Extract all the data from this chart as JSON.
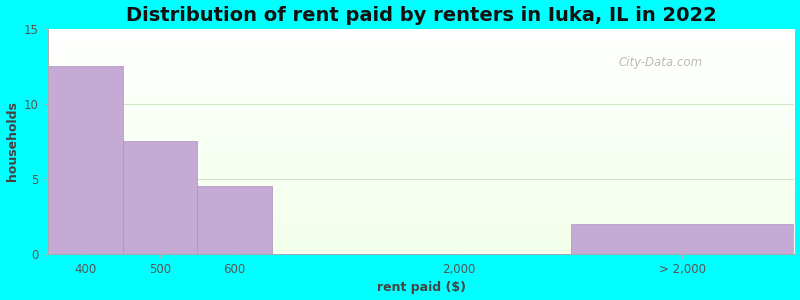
{
  "title": "Distribution of rent paid by renters in Iuka, IL in 2022",
  "xlabel": "rent paid ($)",
  "ylabel": "households",
  "bar_color": "#c4aad4",
  "bar_edgecolor": "#b090c0",
  "background_color": "#00FFFF",
  "ylim": [
    0,
    15
  ],
  "yticks": [
    0,
    5,
    10,
    15
  ],
  "title_fontsize": 14,
  "axis_label_fontsize": 9,
  "tick_fontsize": 8.5,
  "watermark_text": "City-Data.com",
  "bar_data": [
    [
      0,
      1,
      12.5
    ],
    [
      1,
      2,
      7.5
    ],
    [
      2,
      3,
      4.5
    ],
    [
      7,
      10,
      2.0
    ]
  ],
  "xtick_positions": [
    0.5,
    1.5,
    2.5,
    5.5,
    8.5
  ],
  "xtick_labels": [
    "400",
    "500",
    "600",
    "2,000",
    "> 2,000"
  ],
  "xlim": [
    0,
    10
  ],
  "grid_color": "#e0eed8",
  "plot_bg_top": "#f0fff0",
  "plot_bg_bottom": "#d8f0e0"
}
